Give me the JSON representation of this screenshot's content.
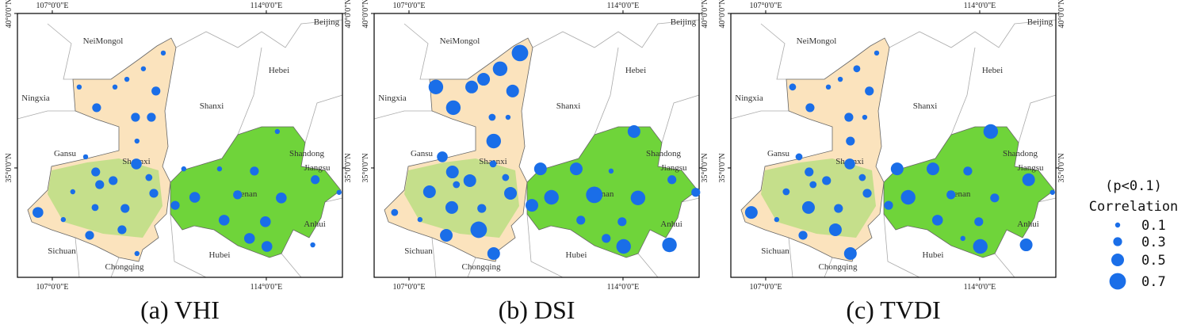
{
  "map": {
    "xlim": [
      105.86,
      116.49
    ],
    "ylim": [
      31.46,
      40.0
    ],
    "xticks": [
      {
        "value": 107,
        "label": "107°0'0\"E"
      },
      {
        "value": 114,
        "label": "114°0'0\"E"
      }
    ],
    "yticks": [
      {
        "value": 35,
        "label": "35°0'0\"N"
      },
      {
        "value": 40,
        "label": "40°0'0\"N"
      }
    ],
    "provinces": [
      "NeiMongol",
      "Beijing",
      "Hebei",
      "Shanxi",
      "Ningxia",
      "Gansu",
      "Shaanxi",
      "Henan",
      "Shandong",
      "Jiangsu",
      "Anhui",
      "Sichuan",
      "Hubei",
      "Chongqing"
    ],
    "stations": [
      {
        "lon": 110.63,
        "lat": 38.72
      },
      {
        "lon": 109.98,
        "lat": 38.21
      },
      {
        "lon": 109.44,
        "lat": 37.87
      },
      {
        "lon": 109.05,
        "lat": 37.62
      },
      {
        "lon": 107.88,
        "lat": 37.62
      },
      {
        "lon": 110.39,
        "lat": 37.49
      },
      {
        "lon": 108.45,
        "lat": 36.95
      },
      {
        "lon": 109.72,
        "lat": 36.64
      },
      {
        "lon": 110.24,
        "lat": 36.64
      },
      {
        "lon": 109.77,
        "lat": 35.87
      },
      {
        "lon": 108.09,
        "lat": 35.36
      },
      {
        "lon": 109.75,
        "lat": 35.13
      },
      {
        "lon": 108.42,
        "lat": 34.87
      },
      {
        "lon": 108.55,
        "lat": 34.46
      },
      {
        "lon": 108.99,
        "lat": 34.59
      },
      {
        "lon": 110.16,
        "lat": 34.69
      },
      {
        "lon": 107.67,
        "lat": 34.23
      },
      {
        "lon": 106.53,
        "lat": 33.56
      },
      {
        "lon": 108.4,
        "lat": 33.72
      },
      {
        "lon": 109.38,
        "lat": 33.69
      },
      {
        "lon": 107.36,
        "lat": 33.33
      },
      {
        "lon": 109.28,
        "lat": 33.0
      },
      {
        "lon": 108.22,
        "lat": 32.82
      },
      {
        "lon": 109.77,
        "lat": 32.23
      },
      {
        "lon": 110.32,
        "lat": 34.18
      },
      {
        "lon": 111.02,
        "lat": 33.79
      },
      {
        "lon": 111.66,
        "lat": 34.05
      },
      {
        "lon": 111.3,
        "lat": 34.97
      },
      {
        "lon": 112.62,
        "lat": 33.31
      },
      {
        "lon": 112.47,
        "lat": 34.97
      },
      {
        "lon": 113.61,
        "lat": 34.9
      },
      {
        "lon": 113.06,
        "lat": 34.13
      },
      {
        "lon": 114.36,
        "lat": 36.18
      },
      {
        "lon": 114.49,
        "lat": 34.03
      },
      {
        "lon": 113.97,
        "lat": 33.26
      },
      {
        "lon": 113.45,
        "lat": 32.72
      },
      {
        "lon": 114.02,
        "lat": 32.46
      },
      {
        "lon": 115.6,
        "lat": 34.62
      },
      {
        "lon": 116.38,
        "lat": 34.21
      },
      {
        "lon": 115.52,
        "lat": 32.51
      }
    ]
  },
  "panels": [
    {
      "caption": "(a) VHI",
      "values": [
        0.1,
        0.1,
        0.1,
        0.1,
        0.1,
        0.3,
        0.3,
        0.3,
        0.3,
        0.1,
        0.1,
        0.4,
        0.3,
        0.3,
        0.3,
        0.2,
        0.1,
        0.4,
        0.2,
        0.3,
        0.1,
        0.3,
        0.3,
        0.1,
        0.3,
        0.3,
        0.4,
        0.1,
        0.4,
        0.1,
        0.3,
        0.3,
        0.1,
        0.4,
        0.4,
        0.4,
        0.4,
        0.3,
        0.1,
        0.1
      ]
    },
    {
      "caption": "(b) DSI",
      "values": [
        0.7,
        0.6,
        0.5,
        0.5,
        0.6,
        0.5,
        0.6,
        0.2,
        0.1,
        0.6,
        0.4,
        0.2,
        0.5,
        0.2,
        0.5,
        0.2,
        0.5,
        0.2,
        0.5,
        0.3,
        0.1,
        0.7,
        0.5,
        0.5,
        0.5,
        0.5,
        0.6,
        0.5,
        0.3,
        0.5,
        0.1,
        0.7,
        0.5,
        0.6,
        0.3,
        0.3,
        0.6,
        0.3,
        0.3,
        0.6
      ]
    },
    {
      "caption": "(c) TVDI",
      "values": [
        0.1,
        0.2,
        0.1,
        0.1,
        0.2,
        0.3,
        0.3,
        0.3,
        0.1,
        0.3,
        0.2,
        0.4,
        0.3,
        0.2,
        0.3,
        0.2,
        0.2,
        0.5,
        0.5,
        0.3,
        0.1,
        0.5,
        0.3,
        0.5,
        0.3,
        0.3,
        0.6,
        0.5,
        0.4,
        0.5,
        0.3,
        0.3,
        0.6,
        0.3,
        0.3,
        0.1,
        0.6,
        0.5,
        0.1,
        0.5
      ]
    }
  ],
  "legend": {
    "title": "(p<0.1)",
    "subtitle": "Correlation",
    "sizes": [
      0.1,
      0.3,
      0.5,
      0.7
    ]
  },
  "color": "#1a6ee8"
}
